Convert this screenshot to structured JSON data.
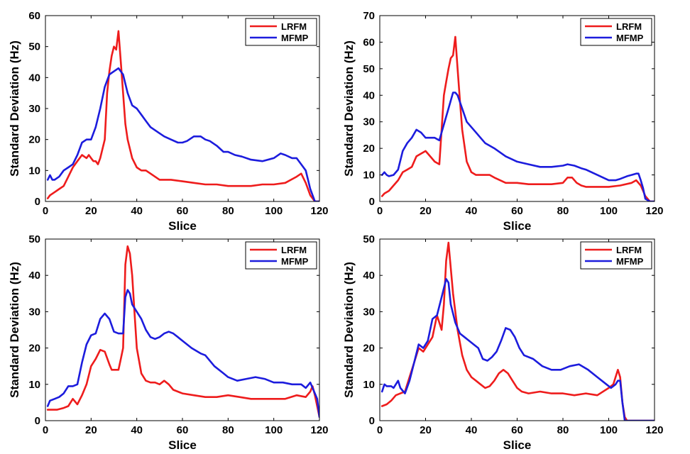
{
  "figure": {
    "panels": 4
  },
  "chart_data": [
    {
      "type": "line",
      "xlabel": "Slice",
      "ylabel": "Standard Deviation (Hz)",
      "xlim": [
        0,
        120
      ],
      "ylim": [
        0,
        60
      ],
      "xticks": [
        0,
        20,
        40,
        60,
        80,
        100,
        120
      ],
      "yticks": [
        0,
        10,
        20,
        30,
        40,
        50,
        60
      ],
      "grid": false,
      "legend_position": "top-right",
      "series": [
        {
          "name": "LRFM",
          "color": "#ee1c1c",
          "x": [
            1,
            2,
            4,
            6,
            8,
            10,
            12,
            14,
            16,
            18,
            19,
            20,
            21,
            22,
            23,
            24,
            26,
            27,
            28,
            29,
            30,
            31,
            32,
            33,
            34,
            35,
            36,
            38,
            40,
            42,
            44,
            46,
            48,
            50,
            55,
            60,
            65,
            70,
            75,
            80,
            85,
            90,
            95,
            100,
            105,
            110,
            112,
            114,
            116,
            118,
            120
          ],
          "values": [
            1,
            2,
            3,
            4,
            5,
            8,
            11,
            13,
            15,
            14,
            15,
            14,
            13,
            13,
            12,
            14,
            20,
            35,
            42,
            47,
            50,
            49,
            55,
            45,
            35,
            25,
            20,
            14,
            11,
            10,
            10,
            9,
            8,
            7,
            7,
            6.5,
            6,
            5.5,
            5.5,
            5,
            5,
            5,
            5.5,
            5.5,
            6,
            8,
            9,
            6,
            2,
            0,
            0
          ]
        },
        {
          "name": "MFMP",
          "color": "#1c1cdd",
          "x": [
            1,
            2,
            3,
            4,
            6,
            8,
            10,
            12,
            14,
            16,
            18,
            20,
            22,
            24,
            26,
            28,
            30,
            32,
            34,
            36,
            38,
            40,
            42,
            44,
            46,
            48,
            50,
            52,
            55,
            58,
            60,
            62,
            65,
            68,
            70,
            72,
            75,
            78,
            80,
            83,
            86,
            90,
            95,
            100,
            103,
            105,
            108,
            110,
            112,
            114,
            116,
            118,
            120
          ],
          "values": [
            7,
            8.5,
            7,
            7,
            8,
            10,
            11,
            12,
            15,
            19,
            20,
            20,
            24,
            30,
            37,
            41,
            42,
            43,
            41,
            35,
            31,
            30,
            28,
            26,
            24,
            23,
            22,
            21,
            20,
            19,
            19,
            19.5,
            21,
            21,
            20,
            19.5,
            18,
            16,
            16,
            15,
            14.5,
            13.5,
            13,
            14,
            15.5,
            15,
            14,
            14,
            12,
            10,
            4,
            0,
            0
          ]
        }
      ]
    },
    {
      "type": "line",
      "xlabel": "Slice",
      "ylabel": "Standard Deviation (Hz)",
      "xlim": [
        0,
        120
      ],
      "ylim": [
        0,
        70
      ],
      "xticks": [
        0,
        20,
        40,
        60,
        80,
        100,
        120
      ],
      "yticks": [
        0,
        10,
        20,
        30,
        40,
        50,
        60,
        70
      ],
      "grid": false,
      "legend_position": "top-right",
      "series": [
        {
          "name": "LRFM",
          "color": "#ee1c1c",
          "x": [
            1,
            2,
            4,
            6,
            8,
            10,
            12,
            14,
            16,
            18,
            20,
            22,
            24,
            26,
            28,
            29,
            30,
            31,
            32,
            33,
            34,
            35,
            36,
            38,
            40,
            42,
            44,
            46,
            48,
            50,
            55,
            60,
            65,
            70,
            75,
            80,
            82,
            84,
            86,
            88,
            90,
            95,
            100,
            105,
            110,
            112,
            114,
            115,
            116,
            118,
            120
          ],
          "values": [
            2,
            3,
            4,
            6,
            8,
            11,
            12,
            13,
            17,
            18,
            19,
            17,
            15,
            14,
            40,
            45,
            50,
            54,
            55,
            62,
            50,
            38,
            27,
            15,
            11,
            10,
            10,
            10,
            10,
            9,
            7,
            7,
            6.5,
            6.5,
            6.5,
            7,
            9,
            9,
            7,
            6,
            5.5,
            5.5,
            5.5,
            6,
            7,
            8,
            6,
            4,
            2,
            0,
            0
          ]
        },
        {
          "name": "MFMP",
          "color": "#1c1cdd",
          "x": [
            1,
            2,
            3,
            4,
            6,
            8,
            10,
            12,
            14,
            16,
            18,
            20,
            22,
            24,
            26,
            28,
            30,
            32,
            33,
            34,
            36,
            38,
            40,
            42,
            44,
            46,
            48,
            50,
            55,
            60,
            65,
            70,
            75,
            80,
            82,
            85,
            88,
            90,
            95,
            100,
            103,
            105,
            108,
            110,
            112,
            113,
            114,
            115,
            116,
            118,
            120
          ],
          "values": [
            10,
            11,
            10,
            9.5,
            10,
            12,
            19,
            22,
            24,
            27,
            26,
            24,
            24,
            24,
            23,
            29,
            35,
            41,
            41,
            40,
            35,
            30,
            28,
            26,
            24,
            22,
            21,
            20,
            17,
            15,
            14,
            13,
            13,
            13.5,
            14,
            13.5,
            12.5,
            12,
            10,
            8,
            8,
            8.5,
            9.5,
            10,
            10.5,
            10.5,
            8,
            5,
            1,
            0,
            0
          ]
        }
      ]
    },
    {
      "type": "line",
      "xlabel": "Slice",
      "ylabel": "Standard Deviation (Hz)",
      "xlim": [
        0,
        120
      ],
      "ylim": [
        0,
        50
      ],
      "xticks": [
        0,
        20,
        40,
        60,
        80,
        100,
        120
      ],
      "yticks": [
        0,
        10,
        20,
        30,
        40,
        50
      ],
      "grid": false,
      "legend_position": "top-right",
      "series": [
        {
          "name": "LRFM",
          "color": "#ee1c1c",
          "x": [
            1,
            3,
            5,
            8,
            10,
            12,
            14,
            16,
            18,
            20,
            22,
            24,
            26,
            28,
            29,
            30,
            32,
            33,
            34,
            35,
            36,
            37,
            38,
            39,
            40,
            42,
            44,
            46,
            48,
            50,
            52,
            54,
            56,
            60,
            65,
            70,
            75,
            80,
            85,
            90,
            95,
            100,
            105,
            110,
            114,
            116,
            117,
            118,
            120
          ],
          "values": [
            3,
            3,
            3,
            3.5,
            4,
            6,
            4.5,
            7,
            10,
            15,
            17,
            19.5,
            19,
            15.5,
            14,
            14,
            14,
            17,
            20,
            43,
            48,
            46,
            40,
            30,
            20,
            13,
            11,
            10.5,
            10.5,
            10,
            11,
            10,
            8.5,
            7.5,
            7,
            6.5,
            6.5,
            7,
            6.5,
            6,
            6,
            6,
            6,
            7,
            6.5,
            8,
            9.5,
            7,
            1
          ]
        },
        {
          "name": "MFMP",
          "color": "#1c1cdd",
          "x": [
            1,
            2,
            4,
            6,
            8,
            10,
            12,
            14,
            16,
            18,
            20,
            22,
            24,
            26,
            28,
            30,
            32,
            34,
            35,
            36,
            37,
            38,
            40,
            42,
            44,
            46,
            48,
            50,
            52,
            54,
            56,
            58,
            60,
            64,
            68,
            70,
            74,
            78,
            80,
            84,
            88,
            92,
            96,
            100,
            104,
            108,
            112,
            114,
            116,
            118,
            119,
            120
          ],
          "values": [
            4,
            5.5,
            6,
            6.5,
            7.5,
            9.5,
            9.5,
            10,
            16,
            21,
            23.5,
            24,
            28,
            29.5,
            28,
            24.5,
            24,
            24,
            34,
            36,
            35,
            32,
            30,
            28,
            25,
            23,
            22.5,
            23,
            24,
            24.5,
            24,
            23,
            22,
            20,
            18.5,
            18,
            15,
            13,
            12,
            11,
            11.5,
            12,
            11.5,
            10.5,
            10.5,
            10,
            10,
            9,
            10.5,
            7.5,
            6,
            1
          ]
        }
      ]
    },
    {
      "type": "line",
      "xlabel": "Slice",
      "ylabel": "Standard Deviation (Hz)",
      "xlim": [
        0,
        120
      ],
      "ylim": [
        0,
        50
      ],
      "xticks": [
        0,
        20,
        40,
        60,
        80,
        100,
        120
      ],
      "yticks": [
        0,
        10,
        20,
        30,
        40,
        50
      ],
      "grid": false,
      "legend_position": "top-right",
      "series": [
        {
          "name": "LRFM",
          "color": "#ee1c1c",
          "x": [
            1,
            3,
            5,
            7,
            9,
            11,
            13,
            15,
            17,
            19,
            21,
            23,
            25,
            27,
            28,
            29,
            30,
            31,
            32,
            34,
            36,
            38,
            40,
            42,
            44,
            46,
            48,
            50,
            52,
            54,
            56,
            58,
            60,
            62,
            65,
            70,
            75,
            80,
            85,
            90,
            95,
            100,
            102,
            104,
            105,
            106,
            107,
            108,
            110,
            115,
            120
          ],
          "values": [
            4,
            4.5,
            5.5,
            7,
            7.5,
            8,
            12,
            16,
            20,
            19,
            21,
            23,
            29,
            25,
            32,
            44,
            49,
            42,
            35,
            25,
            18,
            14,
            12,
            11,
            10,
            9,
            9.5,
            11,
            13,
            14,
            13,
            11,
            9,
            8,
            7.5,
            8,
            7.5,
            7.5,
            7,
            7.5,
            7,
            9,
            10,
            14,
            12,
            5,
            1,
            0,
            0,
            0,
            0
          ]
        },
        {
          "name": "MFMP",
          "color": "#1c1cdd",
          "x": [
            1,
            2,
            3,
            4,
            5,
            6,
            7,
            8,
            9,
            11,
            13,
            15,
            17,
            19,
            21,
            23,
            25,
            27,
            29,
            30,
            31,
            33,
            35,
            37,
            39,
            41,
            43,
            45,
            47,
            49,
            51,
            53,
            55,
            57,
            59,
            61,
            63,
            67,
            71,
            75,
            79,
            83,
            87,
            91,
            95,
            99,
            101,
            103,
            104,
            105,
            106,
            107,
            110,
            115,
            120
          ],
          "values": [
            8,
            10,
            9.5,
            9.5,
            9.5,
            9,
            10,
            11,
            9,
            7.5,
            11,
            16,
            21,
            20,
            22,
            28,
            29,
            34,
            39,
            38,
            32,
            27,
            24,
            23,
            22,
            21,
            20,
            17,
            16.5,
            17.5,
            19,
            22,
            25.5,
            25,
            23,
            20,
            18,
            17,
            15,
            14,
            14,
            15,
            15.5,
            14,
            12,
            10,
            9,
            10,
            11,
            11,
            5,
            0,
            0,
            0,
            0
          ]
        }
      ]
    }
  ]
}
